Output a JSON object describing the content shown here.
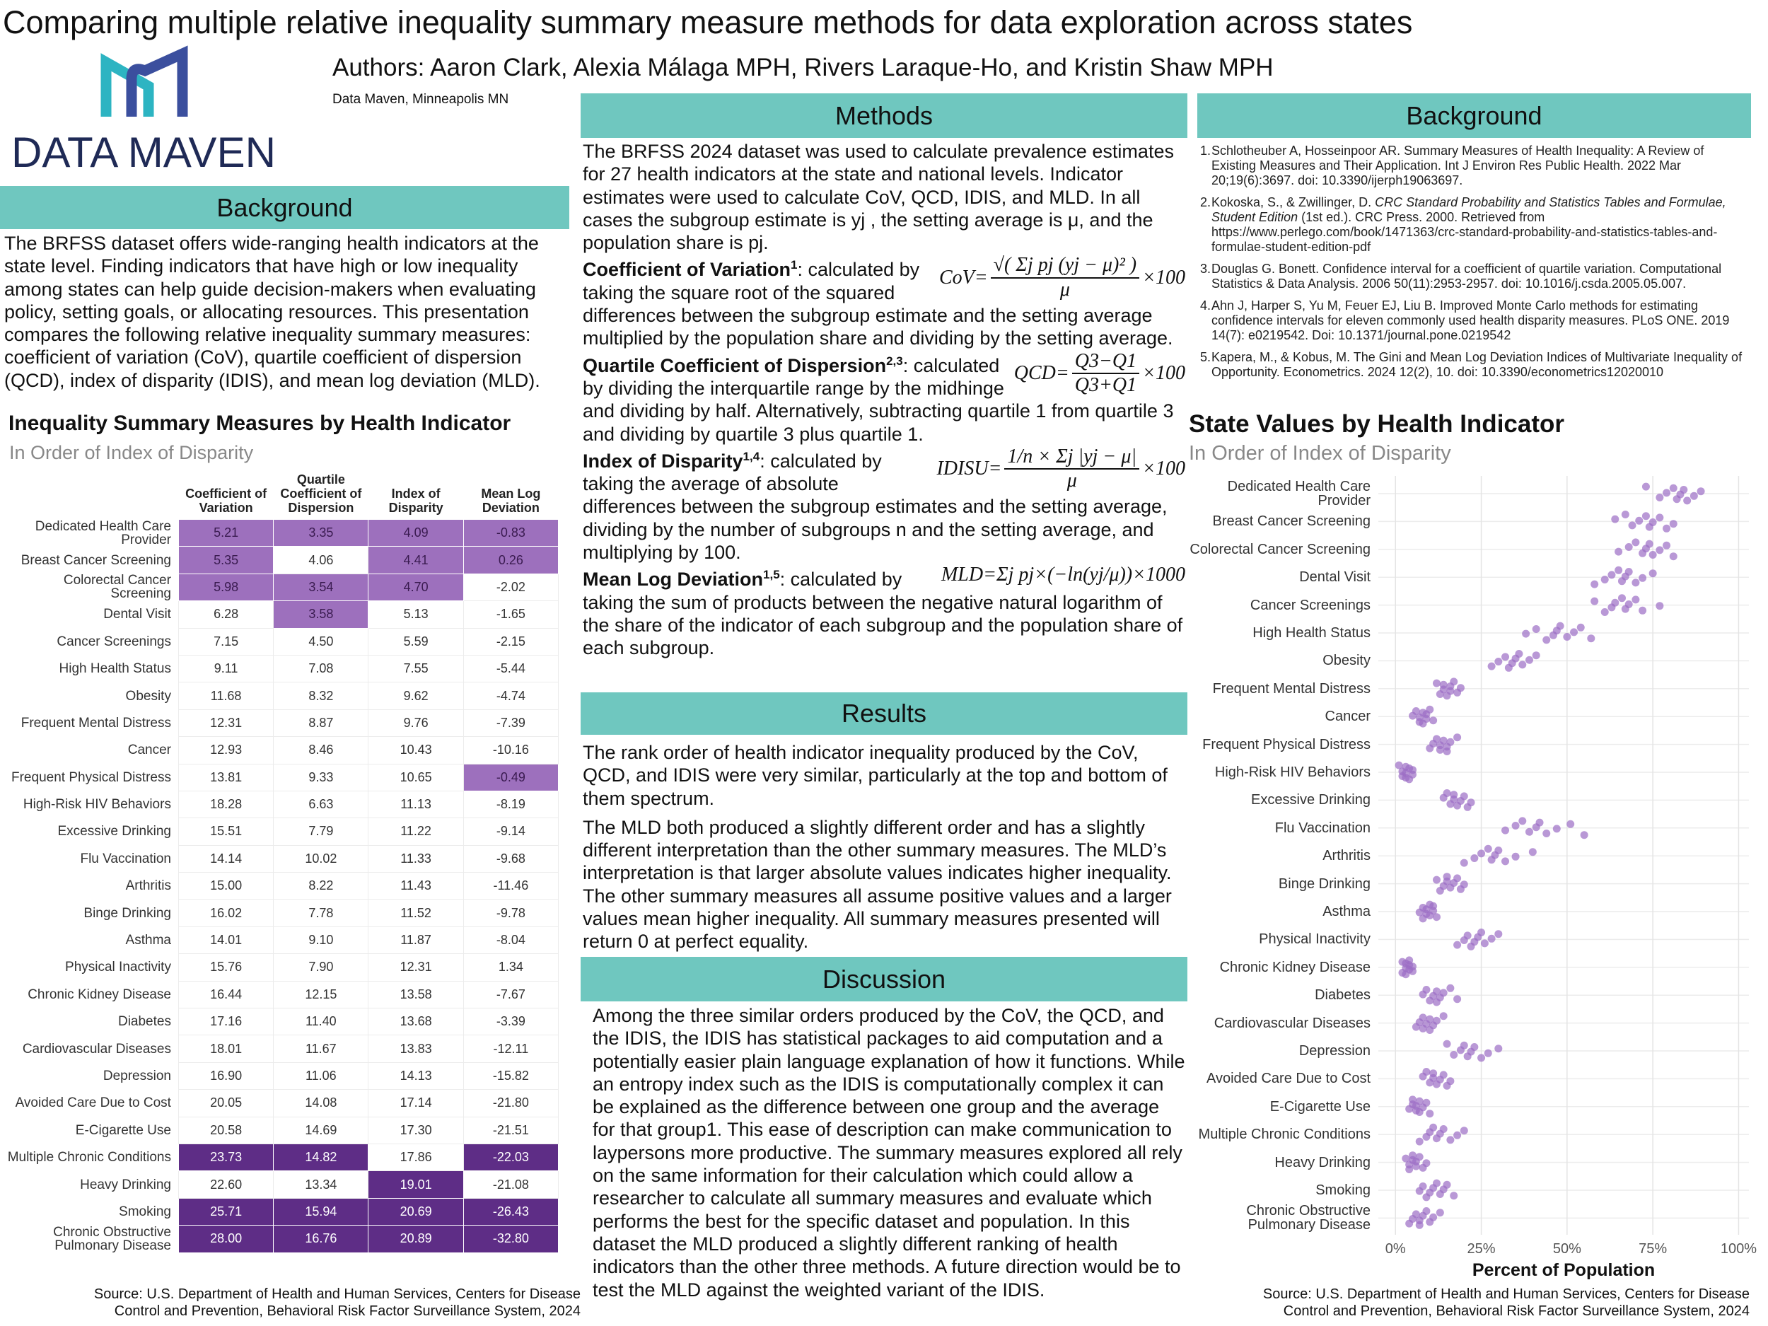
{
  "header": {
    "title": "Comparing multiple relative inequality summary measure methods for data exploration across states",
    "authors": "Authors: Aaron Clark, Alexia Málaga MPH, Rivers Laraque-Ho, and Kristin Shaw MPH",
    "affiliation": "Data Maven, Minneapolis MN",
    "logo_text": "DATA MAVEN"
  },
  "background": {
    "heading": "Background",
    "text": "The BRFSS dataset offers wide-ranging health indicators at the state level. Finding indicators that have high or low inequality among states can help guide decision-makers when evaluating policy, setting goals, or allocating resources. This presentation compares the following relative inequality summary measures: coefficient of variation (CoV), quartile coefficient of dispersion (QCD), index of disparity (IDIS), and mean log deviation (MLD)."
  },
  "table": {
    "title": "Inequality Summary Measures by Health Indicator",
    "subtitle": "In Order of Index of Disparity",
    "columns": [
      "Coefficient of Variation",
      "Quartile Coefficient of Dispersion",
      "Index of Disparity",
      "Mean Log Deviation"
    ],
    "rows": [
      {
        "label": "Dedicated Health Care Provider",
        "cells": [
          "5.21",
          "3.35",
          "4.09",
          "-0.83"
        ],
        "fills": [
          "#9d70bd",
          "#9d70bd",
          "#9d70bd",
          "#9d70bd"
        ]
      },
      {
        "label": "Breast Cancer Screening",
        "cells": [
          "5.35",
          "4.06",
          "4.41",
          "0.26"
        ],
        "fills": [
          "#9d70bd",
          null,
          "#9d70bd",
          "#9d70bd"
        ]
      },
      {
        "label": "Colorectal Cancer Screening",
        "cells": [
          "5.98",
          "3.54",
          "4.70",
          "-2.02"
        ],
        "fills": [
          "#9d70bd",
          "#9d70bd",
          "#9d70bd",
          null
        ]
      },
      {
        "label": "Dental Visit",
        "cells": [
          "6.28",
          "3.58",
          "5.13",
          "-1.65"
        ],
        "fills": [
          null,
          "#9d70bd",
          null,
          null
        ]
      },
      {
        "label": "Cancer Screenings",
        "cells": [
          "7.15",
          "4.50",
          "5.59",
          "-2.15"
        ],
        "fills": [
          null,
          null,
          null,
          null
        ]
      },
      {
        "label": "High Health Status",
        "cells": [
          "9.11",
          "7.08",
          "7.55",
          "-5.44"
        ],
        "fills": [
          null,
          null,
          null,
          null
        ]
      },
      {
        "label": "Obesity",
        "cells": [
          "11.68",
          "8.32",
          "9.62",
          "-4.74"
        ],
        "fills": [
          null,
          null,
          null,
          null
        ]
      },
      {
        "label": "Frequent Mental Distress",
        "cells": [
          "12.31",
          "8.87",
          "9.76",
          "-7.39"
        ],
        "fills": [
          null,
          null,
          null,
          null
        ]
      },
      {
        "label": "Cancer",
        "cells": [
          "12.93",
          "8.46",
          "10.43",
          "-10.16"
        ],
        "fills": [
          null,
          null,
          null,
          null
        ]
      },
      {
        "label": "Frequent Physical Distress",
        "cells": [
          "13.81",
          "9.33",
          "10.65",
          "-0.49"
        ],
        "fills": [
          null,
          null,
          null,
          "#9d70bd"
        ]
      },
      {
        "label": "High-Risk HIV Behaviors",
        "cells": [
          "18.28",
          "6.63",
          "11.13",
          "-8.19"
        ],
        "fills": [
          null,
          null,
          null,
          null
        ]
      },
      {
        "label": "Excessive Drinking",
        "cells": [
          "15.51",
          "7.79",
          "11.22",
          "-9.14"
        ],
        "fills": [
          null,
          null,
          null,
          null
        ]
      },
      {
        "label": "Flu Vaccination",
        "cells": [
          "14.14",
          "10.02",
          "11.33",
          "-9.68"
        ],
        "fills": [
          null,
          null,
          null,
          null
        ]
      },
      {
        "label": "Arthritis",
        "cells": [
          "15.00",
          "8.22",
          "11.43",
          "-11.46"
        ],
        "fills": [
          null,
          null,
          null,
          null
        ]
      },
      {
        "label": "Binge Drinking",
        "cells": [
          "16.02",
          "7.78",
          "11.52",
          "-9.78"
        ],
        "fills": [
          null,
          null,
          null,
          null
        ]
      },
      {
        "label": "Asthma",
        "cells": [
          "14.01",
          "9.10",
          "11.87",
          "-8.04"
        ],
        "fills": [
          null,
          null,
          null,
          null
        ]
      },
      {
        "label": "Physical Inactivity",
        "cells": [
          "15.76",
          "7.90",
          "12.31",
          "1.34"
        ],
        "fills": [
          null,
          null,
          null,
          null
        ]
      },
      {
        "label": "Chronic Kidney Disease",
        "cells": [
          "16.44",
          "12.15",
          "13.58",
          "-7.67"
        ],
        "fills": [
          null,
          null,
          null,
          null
        ]
      },
      {
        "label": "Diabetes",
        "cells": [
          "17.16",
          "11.40",
          "13.68",
          "-3.39"
        ],
        "fills": [
          null,
          null,
          null,
          null
        ]
      },
      {
        "label": "Cardiovascular Diseases",
        "cells": [
          "18.01",
          "11.67",
          "13.83",
          "-12.11"
        ],
        "fills": [
          null,
          null,
          null,
          null
        ]
      },
      {
        "label": "Depression",
        "cells": [
          "16.90",
          "11.06",
          "14.13",
          "-15.82"
        ],
        "fills": [
          null,
          null,
          null,
          null
        ]
      },
      {
        "label": "Avoided Care Due to Cost",
        "cells": [
          "20.05",
          "14.08",
          "17.14",
          "-21.80"
        ],
        "fills": [
          null,
          null,
          null,
          null
        ]
      },
      {
        "label": "E-Cigarette Use",
        "cells": [
          "20.58",
          "14.69",
          "17.30",
          "-21.51"
        ],
        "fills": [
          null,
          null,
          null,
          null
        ]
      },
      {
        "label": "Multiple Chronic Conditions",
        "cells": [
          "23.73",
          "14.82",
          "17.86",
          "-22.03"
        ],
        "fills": [
          "#5e2d86",
          "#5e2d86",
          null,
          "#5e2d86"
        ]
      },
      {
        "label": "Heavy Drinking",
        "cells": [
          "22.60",
          "13.34",
          "19.01",
          "-21.08"
        ],
        "fills": [
          null,
          null,
          "#5e2d86",
          null
        ]
      },
      {
        "label": "Smoking",
        "cells": [
          "25.71",
          "15.94",
          "20.69",
          "-26.43"
        ],
        "fills": [
          "#5e2d86",
          "#5e2d86",
          "#5e2d86",
          "#5e2d86"
        ]
      },
      {
        "label": "Chronic Obstructive Pulmonary Disease",
        "cells": [
          "28.00",
          "16.76",
          "20.89",
          "-32.80"
        ],
        "fills": [
          "#5e2d86",
          "#5e2d86",
          "#5e2d86",
          "#5e2d86"
        ]
      }
    ],
    "source": [
      "Source: U.S. Department of Health and Human Services, Centers for Disease",
      "Control and Prevention, Behavioral Risk Factor Surveillance System, 2024"
    ]
  },
  "methods": {
    "heading": "Methods",
    "intro": "The BRFSS 2024 dataset was used to calculate prevalence estimates for 27 health indicators at the state and national levels. Indicator estimates were used to calculate CoV, QCD, IDIS, and MLD. In all cases the subgroup estimate is yj , the setting average is μ, and the population share is pj.",
    "items": [
      {
        "term": "Coefficient of Variation",
        "sup": "1",
        "text": ": calculated by taking the square root of the squared differences between the subgroup estimate and the setting average multiplied by the population share and dividing by the setting average.",
        "formula": {
          "lhs": "CoV=",
          "num": "√( Σj pj (yj − μ)² )",
          "den": "μ",
          "rhs": "×100"
        }
      },
      {
        "term": "Quartile Coefficient of Dispersion",
        "sup": "2,3",
        "text": ": calculated by dividing the interquartile range by the midhinge and dividing by half. Alternatively, subtracting quartile 1 from quartile 3 and dividing by quartile 3 plus quartile 1.",
        "formula": {
          "lhs": "QCD=",
          "num": "Q3−Q1",
          "den": "Q3+Q1",
          "rhs": "×100"
        }
      },
      {
        "term": "Index of Disparity",
        "sup": "1,4",
        "text": ": calculated by taking the average of absolute differences between the subgroup estimates and the setting average, dividing by the number of subgroups n and the setting average, and multiplying by 100.",
        "formula": {
          "lhs": "IDISU=",
          "num": "1/n × Σj |yj − μ|",
          "den": "μ",
          "rhs": "×100"
        }
      },
      {
        "term": "Mean Log Deviation",
        "sup": "1,5",
        "text": ": calculated by taking the sum of products between the negative natural logarithm of the share of the indicator of each subgroup and the population share of each subgroup.",
        "formula": {
          "lhs": "MLD=",
          "expr": "Σj pj×(−ln(yj/μ))×1000"
        }
      }
    ]
  },
  "results": {
    "heading": "Results",
    "paragraphs": [
      "The rank order of health indicator inequality produced by the CoV, QCD, and IDIS were very similar, particularly at the top and bottom of them spectrum.",
      "The MLD both produced a slightly different order and has a slightly different interpretation than the other summary measures. The MLD’s interpretation is that larger absolute values indicates higher inequality. The other summary measures all assume positive values and a larger values mean higher inequality. All summary measures presented will return 0 at perfect equality."
    ]
  },
  "discussion": {
    "heading": "Discussion",
    "text": "Among the three similar orders produced by the CoV, the QCD, and the IDIS, the IDIS has statistical packages to aid computation and a potentially easier plain language explanation of how it functions. While an entropy index such as the IDIS is computationally complex it can be explained as the difference between one group and the average for that group1. This ease of description can make communication to laypersons more productive. The summary measures explored all rely on the same information for their calculation which could allow a researcher to calculate all summary measures and evaluate which performs the best for the specific dataset and population. In this dataset the MLD produced a slightly different ranking of health indicators than the other three methods. A future direction would be to test the MLD against the weighted variant of the IDIS."
  },
  "references": {
    "heading": "Background",
    "items": [
      {
        "num": "1.",
        "parts": [
          "Schlotheuber A, Hosseinpoor AR. Summary Measures of Health Inequality: A Review of Existing Measures and Their Application. Int J Environ Res Public Health. 2022 Mar 20;19(6):3697. doi: 10.3390/ijerph19063697."
        ]
      },
      {
        "num": "2.",
        "parts": [
          "Kokoska, S., & Zwillinger, D. ",
          "CRC Standard Probability and Statistics Tables and Formulae, Student Edition",
          " (1st ed.). CRC Press. 2000. Retrieved from https://www.perlego.com/book/1471363/crc-standard-probability-and-statistics-tables-and-formulae-student-edition-pdf"
        ]
      },
      {
        "num": "3.",
        "parts": [
          "Douglas G. Bonett. Confidence interval for a coefficient of quartile variation. Computational Statistics & Data Analysis. 2006 50(11):2953-2957. doi: 10.1016/j.csda.2005.05.007."
        ]
      },
      {
        "num": "4.",
        "parts": [
          "Ahn J, Harper S, Yu M, Feuer EJ, Liu B. Improved Monte Carlo methods for estimating confidence intervals for eleven commonly used health disparity measures. PLoS ONE. 2019 14(7): e0219542. Doi: 10.1371/journal.pone.0219542"
        ]
      },
      {
        "num": "5.",
        "parts": [
          "Kapera, M., & Kobus, M. The Gini and Mean Log Deviation Indices of Multivariate Inequality of Opportunity. Econometrics. 2024 12(2), 10. doi: 10.3390/econometrics12020010"
        ]
      }
    ]
  },
  "chart_data": {
    "type": "strip",
    "title": "State Values by Health Indicator",
    "subtitle": "In Order of Index of Disparity",
    "xlabel": "Percent of Population",
    "color": "#9b6cc4",
    "grid": true,
    "xlim": [
      -5,
      103
    ],
    "xticks": [
      {
        "value": 0,
        "label": "0%"
      },
      {
        "value": 25,
        "label": "25%"
      },
      {
        "value": 50,
        "label": "50%"
      },
      {
        "value": 75,
        "label": "75%"
      },
      {
        "value": 100,
        "label": "100%"
      }
    ],
    "categories": [
      "Dedicated Health Care Provider",
      "Breast Cancer Screening",
      "Colorectal Cancer Screening",
      "Dental Visit",
      "Cancer Screenings",
      "High Health Status",
      "Obesity",
      "Frequent Mental Distress",
      "Cancer",
      "Frequent Physical Distress",
      "High-Risk HIV Behaviors",
      "Excessive Drinking",
      "Flu Vaccination",
      "Arthritis",
      "Binge Drinking",
      "Asthma",
      "Physical Inactivity",
      "Chronic Kidney Disease",
      "Diabetes",
      "Cardiovascular Diseases",
      "Depression",
      "Avoided Care Due to Cost",
      "E-Cigarette Use",
      "Multiple Chronic Conditions",
      "Heavy Drinking",
      "Smoking",
      "Chronic Obstructive Pulmonary Disease"
    ],
    "values": [
      [
        73,
        77,
        79,
        81,
        82,
        83,
        84,
        85,
        87,
        89
      ],
      [
        64,
        67,
        69,
        71,
        73,
        74,
        75,
        77,
        79,
        81
      ],
      [
        65,
        68,
        70,
        72,
        73,
        74,
        75,
        77,
        79,
        81
      ],
      [
        58,
        61,
        63,
        65,
        66,
        67,
        68,
        70,
        72,
        75
      ],
      [
        58,
        61,
        63,
        64,
        66,
        67,
        68,
        70,
        72,
        77
      ],
      [
        38,
        41,
        44,
        46,
        47,
        48,
        50,
        52,
        54,
        57
      ],
      [
        28,
        30,
        32,
        33,
        34,
        35,
        36,
        37,
        39,
        41
      ],
      [
        12,
        13,
        14,
        14,
        15,
        16,
        16,
        17,
        18,
        19
      ],
      [
        5,
        6,
        7,
        7,
        8,
        8,
        9,
        9,
        10,
        11
      ],
      [
        10,
        11,
        12,
        13,
        13,
        14,
        15,
        15,
        16,
        18
      ],
      [
        1,
        2,
        2,
        3,
        3,
        3,
        4,
        4,
        5,
        5
      ],
      [
        14,
        15,
        16,
        17,
        17,
        18,
        19,
        20,
        21,
        22
      ],
      [
        32,
        35,
        37,
        39,
        41,
        42,
        44,
        47,
        51,
        55
      ],
      [
        20,
        23,
        25,
        27,
        28,
        29,
        30,
        32,
        35,
        40
      ],
      [
        12,
        13,
        14,
        15,
        15,
        16,
        17,
        18,
        19,
        20
      ],
      [
        7,
        8,
        8,
        9,
        9,
        10,
        10,
        11,
        11,
        12
      ],
      [
        18,
        20,
        21,
        22,
        23,
        24,
        25,
        26,
        28,
        30
      ],
      [
        2,
        2,
        3,
        3,
        3,
        4,
        4,
        4,
        5,
        5
      ],
      [
        8,
        9,
        10,
        11,
        12,
        12,
        13,
        14,
        16,
        18
      ],
      [
        6,
        7,
        8,
        8,
        9,
        10,
        10,
        11,
        12,
        14
      ],
      [
        15,
        17,
        19,
        20,
        21,
        22,
        23,
        25,
        27,
        30
      ],
      [
        8,
        9,
        10,
        11,
        11,
        12,
        13,
        14,
        15,
        16
      ],
      [
        4,
        5,
        5,
        6,
        6,
        7,
        7,
        8,
        9,
        10
      ],
      [
        7,
        9,
        10,
        11,
        12,
        13,
        14,
        16,
        18,
        20
      ],
      [
        3,
        4,
        4,
        5,
        5,
        6,
        6,
        7,
        8,
        9
      ],
      [
        7,
        8,
        9,
        10,
        11,
        12,
        13,
        14,
        15,
        17
      ],
      [
        4,
        5,
        6,
        7,
        7,
        8,
        9,
        10,
        11,
        13
      ]
    ],
    "source": [
      "Source: U.S. Department of Health and Human Services, Centers for Disease",
      "Control and Prevention, Behavioral Risk Factor Surveillance System, 2024"
    ]
  }
}
